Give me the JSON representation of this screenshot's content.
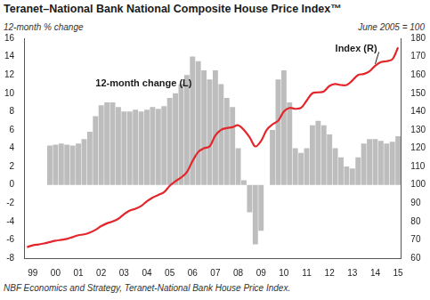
{
  "chart_data": {
    "type": "bar",
    "title": "Teranet–National Bank National Composite House Price Index™",
    "ylabel": "12-month % change",
    "y2label": "June 2005 = 100",
    "source": "NBF Economics and Strategy, Teranet-National Bank House Price Index.",
    "categories": [
      null,
      "99",
      null,
      null,
      null,
      "00",
      null,
      null,
      null,
      "01",
      null,
      null,
      null,
      "02",
      null,
      null,
      null,
      "03",
      null,
      null,
      null,
      "04",
      null,
      null,
      null,
      "05",
      null,
      null,
      null,
      "06",
      null,
      null,
      null,
      "07",
      null,
      null,
      null,
      "08",
      null,
      null,
      null,
      "09",
      null,
      null,
      null,
      "10",
      null,
      null,
      null,
      "11",
      null,
      null,
      null,
      "12",
      null,
      null,
      null,
      "13",
      null,
      null,
      null,
      "14",
      null,
      null,
      null,
      "15"
    ],
    "series": [
      {
        "name": "12-month change (L)",
        "type": "bar",
        "color": "#bdbdbd",
        "values": [
          null,
          null,
          null,
          null,
          4.3,
          4.4,
          4.5,
          4.4,
          4.3,
          4.5,
          5.0,
          5.8,
          7.5,
          8.7,
          9.0,
          9.0,
          8.5,
          8.0,
          8.0,
          8.2,
          8.0,
          8.2,
          8.5,
          8.3,
          8.6,
          9.5,
          10,
          11,
          12,
          14,
          13.5,
          12.5,
          11.5,
          12.5,
          11,
          9.5,
          8.5,
          4,
          0.5,
          -3,
          -6.5,
          -5,
          0,
          6,
          11.5,
          12.5,
          9,
          4,
          3.5,
          4,
          6.5,
          7,
          6.5,
          5.5,
          4,
          3,
          2,
          1.8,
          3,
          4.5,
          5,
          5,
          4.8,
          4.5,
          4.7,
          5.3
        ]
      },
      {
        "name": "Index (R)",
        "type": "line",
        "color": "#e3262b",
        "axis": "y2",
        "values": [
          66,
          67,
          67.5,
          68,
          68.8,
          69.5,
          70,
          70.5,
          71.5,
          72.5,
          73,
          74,
          75.5,
          77.5,
          79,
          80,
          81.5,
          84,
          86,
          87,
          88.5,
          91,
          93,
          94.5,
          96,
          99.5,
          102,
          104,
          107,
          113,
          118,
          120,
          121,
          127,
          130,
          131,
          131.5,
          132.5,
          130,
          126,
          121,
          124,
          130,
          133,
          135,
          140,
          142,
          141.5,
          142,
          146,
          150,
          150.5,
          151,
          154,
          155,
          154.5,
          154.5,
          157,
          160,
          160.5,
          162,
          165,
          167,
          167.5,
          168.5,
          175
        ]
      }
    ],
    "ylim": [
      -8,
      16
    ],
    "yticks": [
      -8,
      -6,
      -4,
      -2,
      0,
      2,
      4,
      6,
      8,
      10,
      12,
      14,
      16
    ],
    "y2lim": [
      60,
      180
    ],
    "y2ticks": [
      60,
      70,
      80,
      90,
      100,
      110,
      120,
      130,
      140,
      150,
      160,
      170,
      180
    ],
    "grid": false
  }
}
